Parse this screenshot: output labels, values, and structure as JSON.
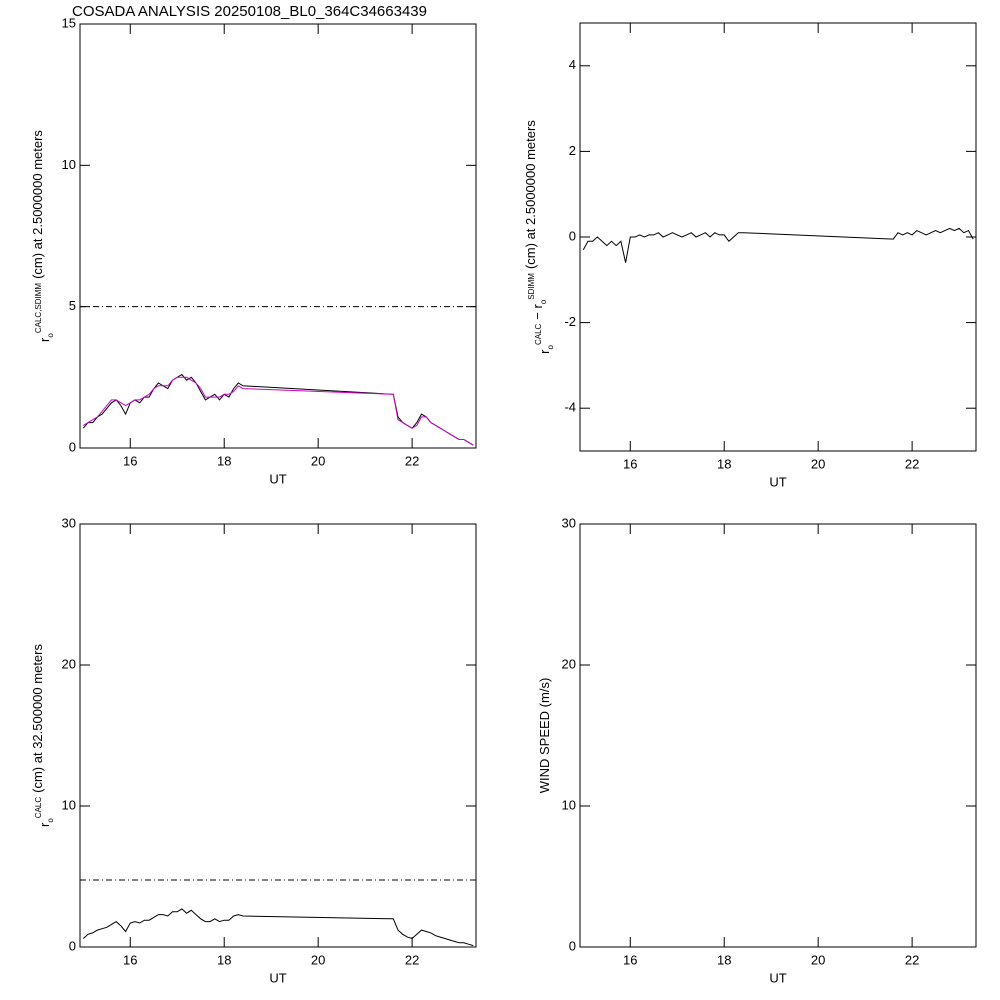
{
  "chart_data": [
    {
      "type": "line",
      "title": "COSADA ANALYSIS 20250108_BL0_364C34663439",
      "xlabel": "UT",
      "ylabel": [
        {
          "text": "r",
          "sub": "o",
          "sup": "CALC,SDIMM"
        },
        {
          "text": "(cm)  at 2.5000000 meters"
        }
      ],
      "xlim": [
        14.93,
        23.36
      ],
      "xticks": [
        16,
        18,
        20,
        22
      ],
      "ylim": [
        0,
        15
      ],
      "yticks": [
        0,
        5,
        10,
        15
      ],
      "hline": 5,
      "x": [
        15.0,
        15.1,
        15.2,
        15.3,
        15.4,
        15.5,
        15.6,
        15.7,
        15.8,
        15.9,
        16.0,
        16.1,
        16.2,
        16.3,
        16.4,
        16.5,
        16.6,
        16.7,
        16.8,
        16.9,
        17.0,
        17.1,
        17.2,
        17.3,
        17.4,
        17.5,
        17.6,
        17.7,
        17.8,
        17.9,
        18.0,
        18.1,
        18.2,
        18.3,
        18.4,
        21.6,
        21.7,
        21.8,
        21.9,
        22.0,
        22.1,
        22.2,
        22.3,
        22.4,
        22.5,
        22.6,
        22.7,
        22.8,
        22.9,
        23.0,
        23.1,
        23.2,
        23.3
      ],
      "series": [
        {
          "color": "#000000",
          "values": [
            0.7,
            0.9,
            0.9,
            1.1,
            1.2,
            1.4,
            1.6,
            1.7,
            1.5,
            1.2,
            1.6,
            1.7,
            1.6,
            1.8,
            1.8,
            2.1,
            2.3,
            2.2,
            2.1,
            2.4,
            2.5,
            2.6,
            2.4,
            2.5,
            2.3,
            2.0,
            1.7,
            1.8,
            1.9,
            1.7,
            1.9,
            1.8,
            2.1,
            2.3,
            2.2,
            1.9,
            1.1,
            0.9,
            0.8,
            0.7,
            0.9,
            1.2,
            1.1,
            0.9,
            0.8,
            0.7,
            0.6,
            0.5,
            0.4,
            0.3,
            0.3,
            0.2,
            0.1
          ]
        },
        {
          "color": "#cc00cc",
          "values": [
            0.8,
            0.9,
            1.0,
            1.1,
            1.3,
            1.5,
            1.7,
            1.7,
            1.6,
            1.5,
            1.6,
            1.7,
            1.7,
            1.8,
            1.9,
            2.1,
            2.2,
            2.2,
            2.2,
            2.4,
            2.5,
            2.5,
            2.5,
            2.4,
            2.3,
            2.1,
            1.8,
            1.8,
            1.8,
            1.8,
            1.9,
            1.9,
            2.0,
            2.2,
            2.1,
            1.9,
            1.0,
            0.9,
            0.8,
            0.7,
            0.8,
            1.1,
            1.1,
            0.9,
            0.8,
            0.7,
            0.6,
            0.5,
            0.4,
            0.3,
            0.3,
            0.2,
            0.1
          ]
        }
      ]
    },
    {
      "type": "line",
      "xlabel": "UT",
      "ylabel": [
        {
          "text": "r",
          "sub": "o",
          "sup": "CALC"
        },
        {
          "text": "− r",
          "sub": "o",
          "sup": "SDIMM"
        },
        {
          "text": "(cm) at 2.5000000 meters"
        }
      ],
      "xlim": [
        14.93,
        23.36
      ],
      "xticks": [
        16,
        18,
        20,
        22
      ],
      "ylim": [
        -5,
        5
      ],
      "yticks": [
        -4,
        -2,
        0,
        2,
        4
      ],
      "x": [
        15.0,
        15.1,
        15.2,
        15.3,
        15.4,
        15.5,
        15.6,
        15.7,
        15.8,
        15.9,
        16.0,
        16.1,
        16.2,
        16.3,
        16.4,
        16.5,
        16.6,
        16.7,
        16.8,
        16.9,
        17.0,
        17.1,
        17.2,
        17.3,
        17.4,
        17.5,
        17.6,
        17.7,
        17.8,
        17.9,
        18.0,
        18.1,
        18.2,
        18.3,
        18.4,
        21.6,
        21.7,
        21.8,
        21.9,
        22.0,
        22.1,
        22.2,
        22.3,
        22.4,
        22.5,
        22.6,
        22.7,
        22.8,
        22.9,
        23.0,
        23.1,
        23.2,
        23.3
      ],
      "series": [
        {
          "color": "#000000",
          "values": [
            -0.3,
            -0.1,
            -0.1,
            0,
            -0.1,
            -0.2,
            -0.1,
            -0.2,
            -0.1,
            -0.6,
            0,
            0,
            0.05,
            0,
            0.05,
            0.05,
            0.1,
            0,
            0.05,
            0.1,
            0.05,
            0,
            0.05,
            0.1,
            0,
            0.05,
            0.1,
            0,
            0.1,
            0.05,
            0.05,
            -0.1,
            0,
            0.1,
            0.1,
            -0.05,
            0.1,
            0.05,
            0.1,
            0.05,
            0.15,
            0.1,
            0.05,
            0.1,
            0.15,
            0.1,
            0.15,
            0.2,
            0.15,
            0.2,
            0.1,
            0.15,
            -0.05
          ]
        }
      ]
    },
    {
      "type": "line",
      "xlabel": "UT",
      "ylabel": [
        {
          "text": "r",
          "sub": "o",
          "sup": "CALC"
        },
        {
          "text": "(cm) at 32.500000 meters"
        }
      ],
      "xlim": [
        14.93,
        23.36
      ],
      "xticks": [
        16,
        18,
        20,
        22
      ],
      "ylim": [
        0,
        30
      ],
      "yticks": [
        0,
        10,
        20,
        30
      ],
      "hline": 4.75,
      "x": [
        15.0,
        15.1,
        15.2,
        15.3,
        15.4,
        15.5,
        15.6,
        15.7,
        15.8,
        15.9,
        16.0,
        16.1,
        16.2,
        16.3,
        16.4,
        16.5,
        16.6,
        16.7,
        16.8,
        16.9,
        17.0,
        17.1,
        17.2,
        17.3,
        17.4,
        17.5,
        17.6,
        17.7,
        17.8,
        17.9,
        18.0,
        18.1,
        18.2,
        18.3,
        18.4,
        21.6,
        21.7,
        21.8,
        21.9,
        22.0,
        22.1,
        22.2,
        22.3,
        22.4,
        22.5,
        22.6,
        22.7,
        22.8,
        22.9,
        23.0,
        23.1,
        23.2,
        23.3
      ],
      "series": [
        {
          "color": "#000000",
          "values": [
            0.6,
            0.9,
            1.0,
            1.2,
            1.3,
            1.4,
            1.6,
            1.8,
            1.5,
            1.1,
            1.7,
            1.8,
            1.7,
            1.9,
            1.9,
            2.1,
            2.3,
            2.3,
            2.2,
            2.5,
            2.5,
            2.7,
            2.4,
            2.6,
            2.3,
            2.0,
            1.8,
            1.8,
            2.0,
            1.8,
            1.9,
            1.9,
            2.2,
            2.3,
            2.2,
            2.0,
            1.2,
            0.9,
            0.7,
            0.6,
            0.9,
            1.2,
            1.1,
            1.0,
            0.8,
            0.7,
            0.6,
            0.5,
            0.4,
            0.3,
            0.3,
            0.2,
            0.1
          ]
        }
      ]
    },
    {
      "type": "line",
      "xlabel": "UT",
      "ylabel": [
        {
          "text": "WIND SPEED (m/s)"
        }
      ],
      "xlim": [
        14.93,
        23.36
      ],
      "xticks": [
        16,
        18,
        20,
        22
      ],
      "ylim": [
        0,
        30
      ],
      "yticks": [
        0,
        10,
        20,
        30
      ],
      "series": []
    }
  ]
}
